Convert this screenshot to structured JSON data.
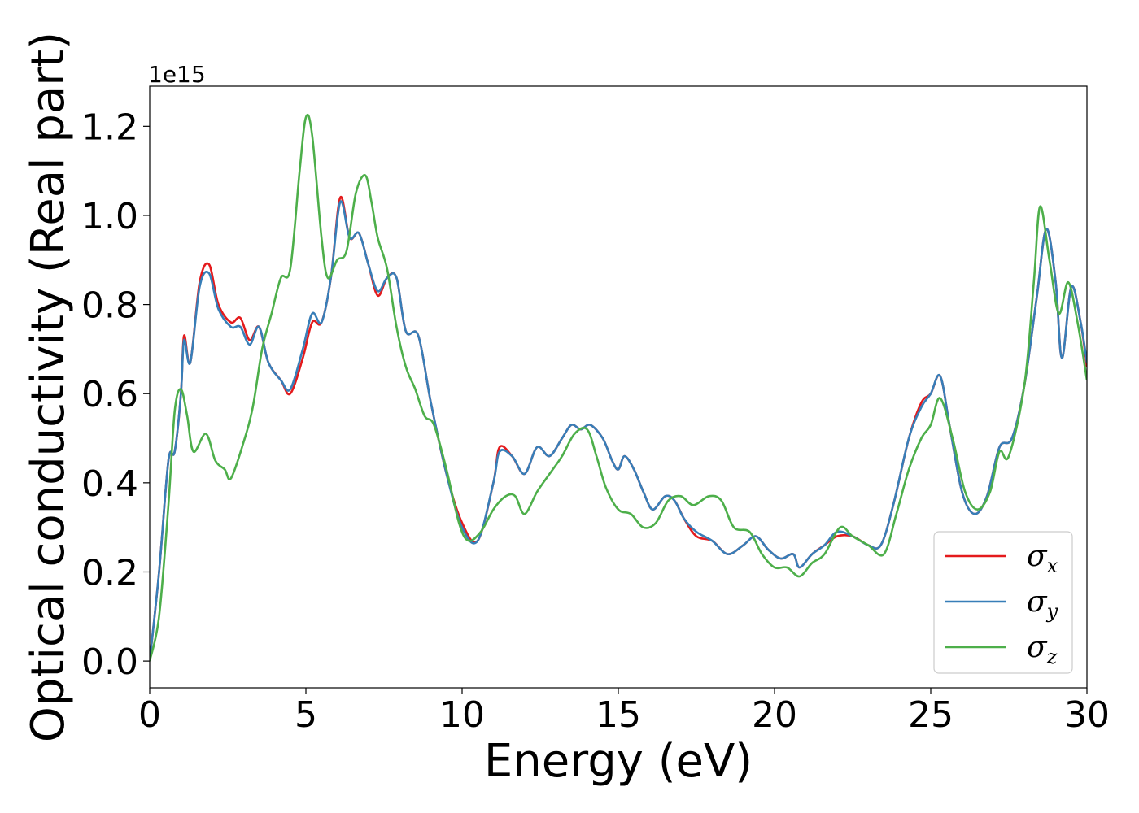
{
  "chart_data": {
    "type": "line",
    "title": "",
    "xlabel": "Energy (eV)",
    "ylabel": "Optical conductivity (Real part)",
    "y_offset_label": "1e15",
    "xlim": [
      0,
      30
    ],
    "ylim": [
      -0.06,
      1.29
    ],
    "x_ticks": [
      0,
      5,
      10,
      15,
      20,
      25,
      30
    ],
    "x_tick_labels": [
      "0",
      "5",
      "10",
      "15",
      "20",
      "25",
      "30"
    ],
    "y_ticks": [
      0.0,
      0.2,
      0.4,
      0.6,
      0.8,
      1.0,
      1.2
    ],
    "y_tick_labels": [
      "0.0",
      "0.2",
      "0.4",
      "0.6",
      "0.8",
      "1.0",
      "1.2"
    ],
    "grid": false,
    "legend_position": "lower-right",
    "series": [
      {
        "name": "σx",
        "symbol": "σ",
        "subscript": "x",
        "color": "#e41a1c",
        "points": [
          [
            0,
            0
          ],
          [
            0.3,
            0.2
          ],
          [
            0.6,
            0.45
          ],
          [
            0.8,
            0.47
          ],
          [
            1.0,
            0.6
          ],
          [
            1.1,
            0.73
          ],
          [
            1.3,
            0.67
          ],
          [
            1.6,
            0.85
          ],
          [
            1.9,
            0.89
          ],
          [
            2.2,
            0.8
          ],
          [
            2.6,
            0.76
          ],
          [
            2.9,
            0.77
          ],
          [
            3.2,
            0.72
          ],
          [
            3.5,
            0.75
          ],
          [
            3.8,
            0.67
          ],
          [
            4.2,
            0.63
          ],
          [
            4.5,
            0.6
          ],
          [
            4.9,
            0.68
          ],
          [
            5.2,
            0.76
          ],
          [
            5.5,
            0.76
          ],
          [
            5.8,
            0.86
          ],
          [
            6.1,
            1.04
          ],
          [
            6.4,
            0.95
          ],
          [
            6.7,
            0.96
          ],
          [
            7.0,
            0.89
          ],
          [
            7.3,
            0.82
          ],
          [
            7.6,
            0.86
          ],
          [
            7.9,
            0.86
          ],
          [
            8.2,
            0.74
          ],
          [
            8.6,
            0.73
          ],
          [
            9.0,
            0.58
          ],
          [
            9.5,
            0.42
          ],
          [
            10.0,
            0.31
          ],
          [
            10.5,
            0.27
          ],
          [
            11.0,
            0.4
          ],
          [
            11.2,
            0.48
          ],
          [
            11.6,
            0.46
          ],
          [
            12.0,
            0.42
          ],
          [
            12.4,
            0.48
          ],
          [
            12.8,
            0.46
          ],
          [
            13.2,
            0.5
          ],
          [
            13.5,
            0.53
          ],
          [
            13.8,
            0.52
          ],
          [
            14.1,
            0.53
          ],
          [
            14.5,
            0.5
          ],
          [
            14.8,
            0.45
          ],
          [
            15.0,
            0.43
          ],
          [
            15.2,
            0.46
          ],
          [
            15.5,
            0.43
          ],
          [
            15.8,
            0.38
          ],
          [
            16.1,
            0.34
          ],
          [
            16.5,
            0.37
          ],
          [
            16.8,
            0.36
          ],
          [
            17.1,
            0.32
          ],
          [
            17.5,
            0.28
          ],
          [
            18.0,
            0.27
          ],
          [
            18.5,
            0.24
          ],
          [
            19.0,
            0.26
          ],
          [
            19.4,
            0.28
          ],
          [
            19.8,
            0.25
          ],
          [
            20.2,
            0.23
          ],
          [
            20.6,
            0.24
          ],
          [
            20.8,
            0.21
          ],
          [
            21.2,
            0.24
          ],
          [
            21.6,
            0.26
          ],
          [
            22.0,
            0.28
          ],
          [
            22.5,
            0.28
          ],
          [
            23.0,
            0.26
          ],
          [
            23.4,
            0.26
          ],
          [
            23.8,
            0.35
          ],
          [
            24.3,
            0.5
          ],
          [
            24.7,
            0.58
          ],
          [
            25.0,
            0.6
          ],
          [
            25.3,
            0.64
          ],
          [
            25.6,
            0.53
          ],
          [
            26.0,
            0.38
          ],
          [
            26.4,
            0.33
          ],
          [
            26.8,
            0.37
          ],
          [
            27.2,
            0.48
          ],
          [
            27.6,
            0.5
          ],
          [
            28.0,
            0.62
          ],
          [
            28.4,
            0.82
          ],
          [
            28.7,
            0.97
          ],
          [
            29.0,
            0.85
          ],
          [
            29.2,
            0.68
          ],
          [
            29.5,
            0.84
          ],
          [
            29.8,
            0.76
          ],
          [
            30.0,
            0.66
          ]
        ]
      },
      {
        "name": "σy",
        "symbol": "σ",
        "subscript": "y",
        "color": "#377eb8",
        "points": [
          [
            0,
            0
          ],
          [
            0.3,
            0.2
          ],
          [
            0.6,
            0.45
          ],
          [
            0.8,
            0.47
          ],
          [
            1.0,
            0.6
          ],
          [
            1.1,
            0.72
          ],
          [
            1.3,
            0.67
          ],
          [
            1.6,
            0.84
          ],
          [
            1.9,
            0.87
          ],
          [
            2.2,
            0.79
          ],
          [
            2.6,
            0.75
          ],
          [
            2.9,
            0.75
          ],
          [
            3.2,
            0.71
          ],
          [
            3.5,
            0.75
          ],
          [
            3.8,
            0.67
          ],
          [
            4.2,
            0.63
          ],
          [
            4.5,
            0.61
          ],
          [
            4.9,
            0.7
          ],
          [
            5.2,
            0.78
          ],
          [
            5.5,
            0.76
          ],
          [
            5.8,
            0.86
          ],
          [
            6.1,
            1.03
          ],
          [
            6.4,
            0.95
          ],
          [
            6.7,
            0.96
          ],
          [
            7.0,
            0.89
          ],
          [
            7.3,
            0.83
          ],
          [
            7.6,
            0.86
          ],
          [
            7.9,
            0.86
          ],
          [
            8.2,
            0.74
          ],
          [
            8.6,
            0.73
          ],
          [
            9.0,
            0.58
          ],
          [
            9.5,
            0.42
          ],
          [
            10.0,
            0.3
          ],
          [
            10.5,
            0.27
          ],
          [
            11.0,
            0.4
          ],
          [
            11.2,
            0.47
          ],
          [
            11.6,
            0.46
          ],
          [
            12.0,
            0.42
          ],
          [
            12.4,
            0.48
          ],
          [
            12.8,
            0.46
          ],
          [
            13.2,
            0.5
          ],
          [
            13.5,
            0.53
          ],
          [
            13.8,
            0.52
          ],
          [
            14.1,
            0.53
          ],
          [
            14.5,
            0.5
          ],
          [
            14.8,
            0.45
          ],
          [
            15.0,
            0.43
          ],
          [
            15.2,
            0.46
          ],
          [
            15.5,
            0.43
          ],
          [
            15.8,
            0.38
          ],
          [
            16.1,
            0.34
          ],
          [
            16.5,
            0.37
          ],
          [
            16.8,
            0.36
          ],
          [
            17.1,
            0.32
          ],
          [
            17.5,
            0.29
          ],
          [
            18.0,
            0.27
          ],
          [
            18.5,
            0.24
          ],
          [
            19.0,
            0.26
          ],
          [
            19.4,
            0.28
          ],
          [
            19.8,
            0.25
          ],
          [
            20.2,
            0.23
          ],
          [
            20.6,
            0.24
          ],
          [
            20.8,
            0.21
          ],
          [
            21.2,
            0.24
          ],
          [
            21.6,
            0.26
          ],
          [
            22.0,
            0.29
          ],
          [
            22.5,
            0.28
          ],
          [
            23.0,
            0.26
          ],
          [
            23.4,
            0.26
          ],
          [
            23.8,
            0.35
          ],
          [
            24.3,
            0.5
          ],
          [
            24.7,
            0.57
          ],
          [
            25.0,
            0.6
          ],
          [
            25.3,
            0.64
          ],
          [
            25.6,
            0.53
          ],
          [
            26.0,
            0.38
          ],
          [
            26.4,
            0.33
          ],
          [
            26.8,
            0.37
          ],
          [
            27.2,
            0.48
          ],
          [
            27.6,
            0.5
          ],
          [
            28.0,
            0.62
          ],
          [
            28.4,
            0.82
          ],
          [
            28.7,
            0.97
          ],
          [
            29.0,
            0.85
          ],
          [
            29.2,
            0.68
          ],
          [
            29.5,
            0.84
          ],
          [
            29.8,
            0.76
          ],
          [
            30.0,
            0.67
          ]
        ]
      },
      {
        "name": "σz",
        "symbol": "σ",
        "subscript": "z",
        "color": "#4daf4a",
        "points": [
          [
            0,
            0
          ],
          [
            0.3,
            0.1
          ],
          [
            0.6,
            0.35
          ],
          [
            0.8,
            0.56
          ],
          [
            1.0,
            0.61
          ],
          [
            1.2,
            0.55
          ],
          [
            1.4,
            0.47
          ],
          [
            1.8,
            0.51
          ],
          [
            2.1,
            0.45
          ],
          [
            2.4,
            0.43
          ],
          [
            2.6,
            0.41
          ],
          [
            3.0,
            0.49
          ],
          [
            3.3,
            0.57
          ],
          [
            3.6,
            0.7
          ],
          [
            3.9,
            0.78
          ],
          [
            4.2,
            0.86
          ],
          [
            4.5,
            0.88
          ],
          [
            4.8,
            1.1
          ],
          [
            5.0,
            1.22
          ],
          [
            5.2,
            1.18
          ],
          [
            5.5,
            0.95
          ],
          [
            5.7,
            0.86
          ],
          [
            6.0,
            0.9
          ],
          [
            6.3,
            0.92
          ],
          [
            6.6,
            1.05
          ],
          [
            6.9,
            1.09
          ],
          [
            7.1,
            1.03
          ],
          [
            7.3,
            0.95
          ],
          [
            7.6,
            0.88
          ],
          [
            7.9,
            0.75
          ],
          [
            8.2,
            0.66
          ],
          [
            8.5,
            0.61
          ],
          [
            8.8,
            0.55
          ],
          [
            9.1,
            0.53
          ],
          [
            9.5,
            0.43
          ],
          [
            9.9,
            0.31
          ],
          [
            10.2,
            0.27
          ],
          [
            10.6,
            0.29
          ],
          [
            11.0,
            0.34
          ],
          [
            11.4,
            0.37
          ],
          [
            11.7,
            0.37
          ],
          [
            12.0,
            0.33
          ],
          [
            12.4,
            0.38
          ],
          [
            12.8,
            0.42
          ],
          [
            13.2,
            0.46
          ],
          [
            13.6,
            0.51
          ],
          [
            14.0,
            0.52
          ],
          [
            14.3,
            0.46
          ],
          [
            14.6,
            0.39
          ],
          [
            15.0,
            0.34
          ],
          [
            15.4,
            0.33
          ],
          [
            15.8,
            0.3
          ],
          [
            16.2,
            0.31
          ],
          [
            16.6,
            0.36
          ],
          [
            17.0,
            0.37
          ],
          [
            17.4,
            0.35
          ],
          [
            17.9,
            0.37
          ],
          [
            18.3,
            0.36
          ],
          [
            18.7,
            0.3
          ],
          [
            19.2,
            0.29
          ],
          [
            19.6,
            0.24
          ],
          [
            20.0,
            0.21
          ],
          [
            20.4,
            0.21
          ],
          [
            20.8,
            0.19
          ],
          [
            21.2,
            0.22
          ],
          [
            21.6,
            0.24
          ],
          [
            22.1,
            0.3
          ],
          [
            22.5,
            0.28
          ],
          [
            23.0,
            0.26
          ],
          [
            23.5,
            0.24
          ],
          [
            23.9,
            0.33
          ],
          [
            24.3,
            0.43
          ],
          [
            24.7,
            0.5
          ],
          [
            25.0,
            0.53
          ],
          [
            25.3,
            0.59
          ],
          [
            25.7,
            0.5
          ],
          [
            26.1,
            0.38
          ],
          [
            26.5,
            0.34
          ],
          [
            26.9,
            0.38
          ],
          [
            27.2,
            0.47
          ],
          [
            27.5,
            0.46
          ],
          [
            28.0,
            0.62
          ],
          [
            28.3,
            0.85
          ],
          [
            28.5,
            1.02
          ],
          [
            28.8,
            0.9
          ],
          [
            29.1,
            0.78
          ],
          [
            29.4,
            0.85
          ],
          [
            29.7,
            0.76
          ],
          [
            30.0,
            0.63
          ]
        ]
      }
    ]
  }
}
